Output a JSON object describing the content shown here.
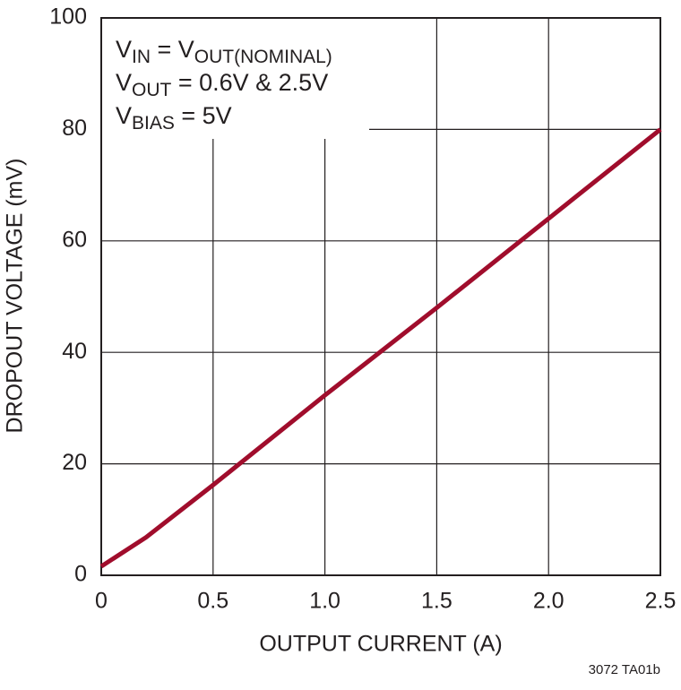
{
  "chart_data": {
    "type": "line",
    "x_label": "OUTPUT CURRENT (A)",
    "y_label": "DROPOUT VOLTAGE (mV)",
    "annotations": [
      [
        "V",
        "IN",
        " = V",
        "OUT(NOMINAL)"
      ],
      [
        "V",
        "OUT",
        " = 0.6V & 2.5V"
      ],
      [
        "V",
        "BIAS",
        " = 5V"
      ]
    ],
    "footnote": "3072 TA01b",
    "x": [
      0,
      0.2,
      0.5,
      1.0,
      1.5,
      2.0,
      2.5
    ],
    "series": [
      {
        "color": "#a00d2c",
        "values": [
          1.6,
          6.8,
          16.2,
          32.3,
          48,
          64,
          80
        ]
      }
    ],
    "xlim": [
      0,
      2.5
    ],
    "xticks": [
      0,
      0.5,
      {
        "value": 1,
        "label": "1.0"
      },
      1.5,
      {
        "value": 2,
        "label": "2.0"
      },
      2.5
    ],
    "ylim": [
      0,
      100
    ],
    "yticks": [
      0,
      20,
      40,
      60,
      80,
      100
    ],
    "grid": true
  }
}
